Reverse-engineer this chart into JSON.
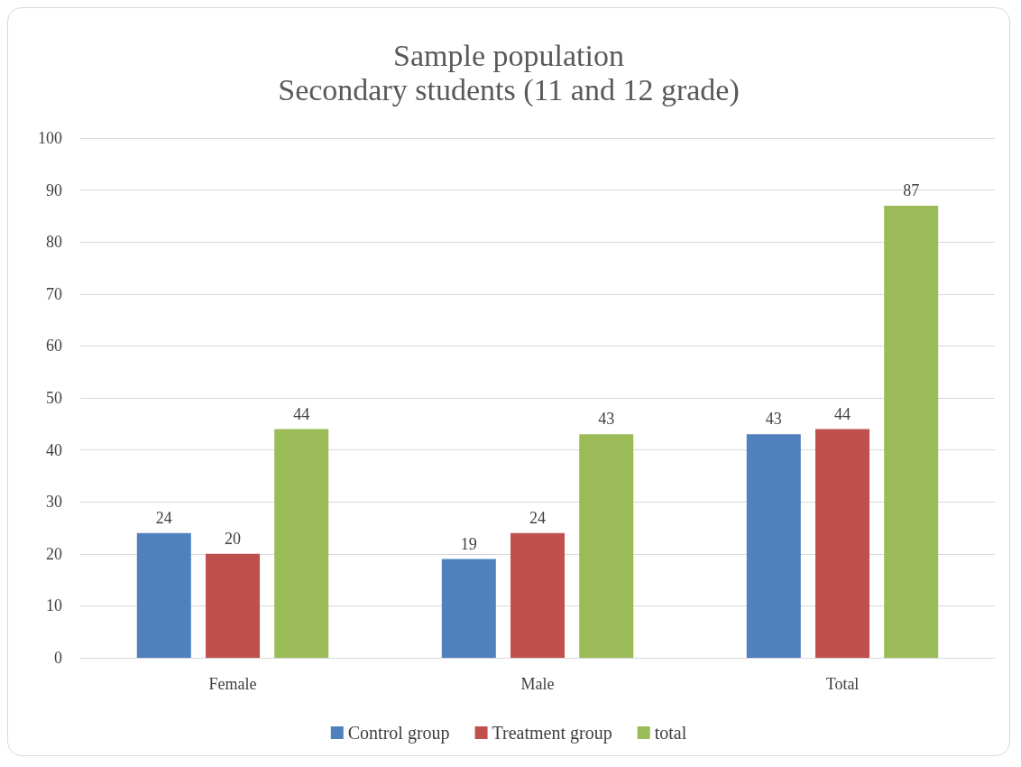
{
  "chart_data": {
    "type": "bar",
    "title": "Sample population",
    "subtitle": "Secondary students (11 and 12 grade)",
    "categories": [
      "Female",
      "Male",
      "Total"
    ],
    "series": [
      {
        "name": "Control group",
        "color": "#4f81bd",
        "values": [
          24,
          19,
          43
        ]
      },
      {
        "name": "Treatment group",
        "color": "#c0504d",
        "values": [
          20,
          24,
          44
        ]
      },
      {
        "name": "total",
        "color": "#9bbb59",
        "values": [
          44,
          43,
          87
        ]
      }
    ],
    "ylim": [
      0,
      100
    ],
    "yticks": [
      0,
      10,
      20,
      30,
      40,
      50,
      60,
      70,
      80,
      90,
      100
    ],
    "grid": "y",
    "legend": "bottom",
    "data_labels": true
  }
}
